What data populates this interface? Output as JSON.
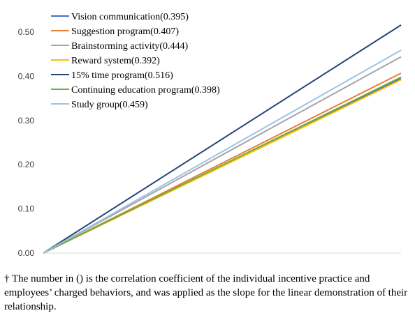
{
  "chart_data": {
    "type": "line",
    "x": [
      0,
      1
    ],
    "ylim": [
      0,
      0.5
    ],
    "yticks": [
      "0.00",
      "0.10",
      "0.20",
      "0.30",
      "0.40",
      "0.50"
    ],
    "grid": false,
    "legend_position": "top-left",
    "series": [
      {
        "name": "Vision communication(0.395)",
        "values": [
          0,
          0.395
        ],
        "color": "#4472C4"
      },
      {
        "name": "Suggestion program(0.407)",
        "values": [
          0,
          0.407
        ],
        "color": "#ED7D31"
      },
      {
        "name": "Brainstorming activity(0.444)",
        "values": [
          0,
          0.444
        ],
        "color": "#A5A5A5"
      },
      {
        "name": "Reward system(0.392)",
        "values": [
          0,
          0.392
        ],
        "color": "#FFC000"
      },
      {
        "name": "15% time program(0.516)",
        "values": [
          0,
          0.516
        ],
        "color": "#264478"
      },
      {
        "name": "Continuing education program(0.398)",
        "values": [
          0,
          0.398
        ],
        "color": "#70AD47"
      },
      {
        "name": "Study group(0.459)",
        "values": [
          0,
          0.459
        ],
        "color": "#9DC3E6"
      }
    ]
  },
  "footnote": "† The number in () is the correlation coefficient of the individual incentive practice and employees’ charged behaviors, and was applied as the slope for the linear demonstration of their relationship."
}
